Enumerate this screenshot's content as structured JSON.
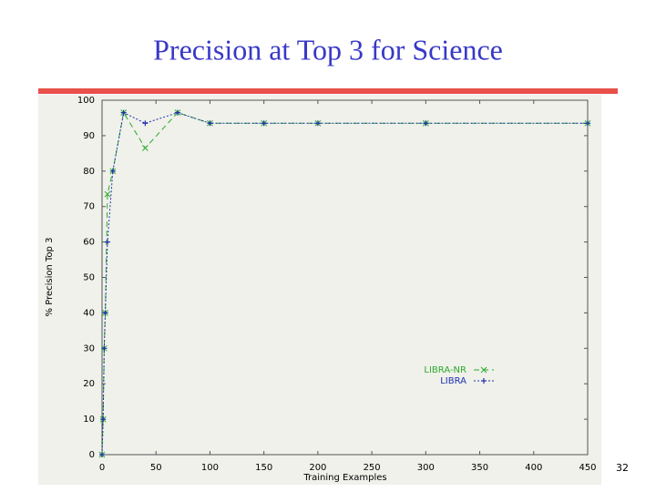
{
  "chart_data": {
    "type": "line",
    "title": "Precision at Top 3 for Science",
    "xlabel": "Training Examples",
    "ylabel": "% Precision Top 3",
    "x": [
      0,
      1,
      2,
      3,
      5,
      10,
      20,
      40,
      70,
      100,
      150,
      200,
      300,
      450
    ],
    "series": [
      {
        "name": "LIBRA-NR",
        "color": "#2faa2f",
        "values": [
          0,
          10,
          30,
          40,
          73.5,
          80,
          96.5,
          86.5,
          96.5,
          93.5,
          93.5,
          93.5,
          93.5,
          93.5
        ]
      },
      {
        "name": "LIBRA",
        "color": "#2030b0",
        "values": [
          0,
          10,
          30,
          40,
          60,
          80,
          96.5,
          93.5,
          96.5,
          93.5,
          93.5,
          93.5,
          93.5,
          93.5
        ]
      }
    ],
    "xlim": [
      0,
      450
    ],
    "xticks": [
      0,
      50,
      100,
      150,
      200,
      250,
      300,
      350,
      400,
      450
    ],
    "ylim": [
      0,
      100
    ],
    "yticks": [
      0,
      10,
      20,
      30,
      40,
      50,
      60,
      70,
      80,
      90,
      100
    ],
    "grid": false
  },
  "page_number": "32"
}
